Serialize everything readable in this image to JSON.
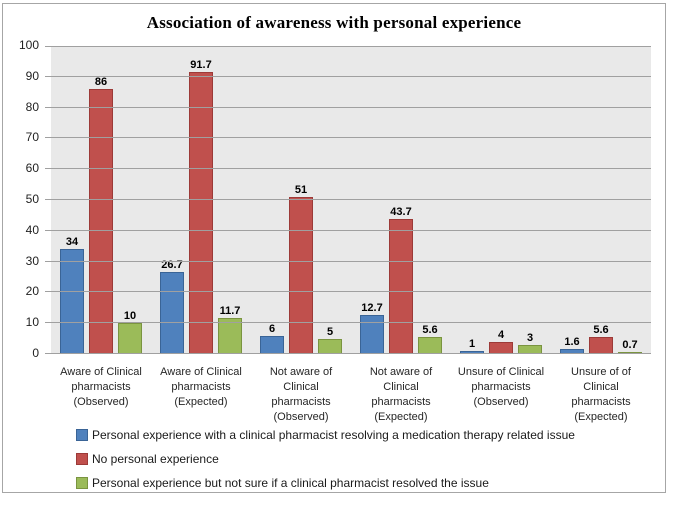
{
  "chart_data": {
    "type": "bar",
    "title": "Association of awareness with personal experience",
    "categories": [
      "Aware of Clinical\npharmacists\n(Observed)",
      "Aware of Clinical\npharmacists\n(Expected)",
      "Not aware of Clinical\npharmacists\n(Observed)",
      "Not aware of Clinical\npharmacists\n(Expected)",
      "Unsure of Clinical\npharmacists\n(Observed)",
      "Unsure of of Clinical\npharmacists\n(Expected)"
    ],
    "series": [
      {
        "name": "Personal experience with a clinical pharmacist resolving a medication therapy related issue",
        "color": "#4F81BD",
        "border_color": "#3A6496",
        "values": [
          34,
          26.7,
          6,
          12.7,
          1,
          1.6
        ]
      },
      {
        "name": "No personal experience",
        "color": "#C0504D",
        "border_color": "#9C3A38",
        "values": [
          86,
          91.7,
          51,
          43.7,
          4,
          5.6
        ]
      },
      {
        "name": "Personal experience but not sure if a clinical pharmacist resolved the issue",
        "color": "#9BBB59",
        "border_color": "#7A9440",
        "values": [
          10,
          11.7,
          5,
          5.6,
          3,
          0.7
        ]
      }
    ],
    "xlabel": "",
    "ylabel": "",
    "ylim": [
      0,
      100
    ],
    "ytick_step": 10,
    "grid": "horizontal",
    "legend_position": "bottom-left",
    "plot_background": "#E9E9E9",
    "gridline_color": "#A0A0A0"
  }
}
